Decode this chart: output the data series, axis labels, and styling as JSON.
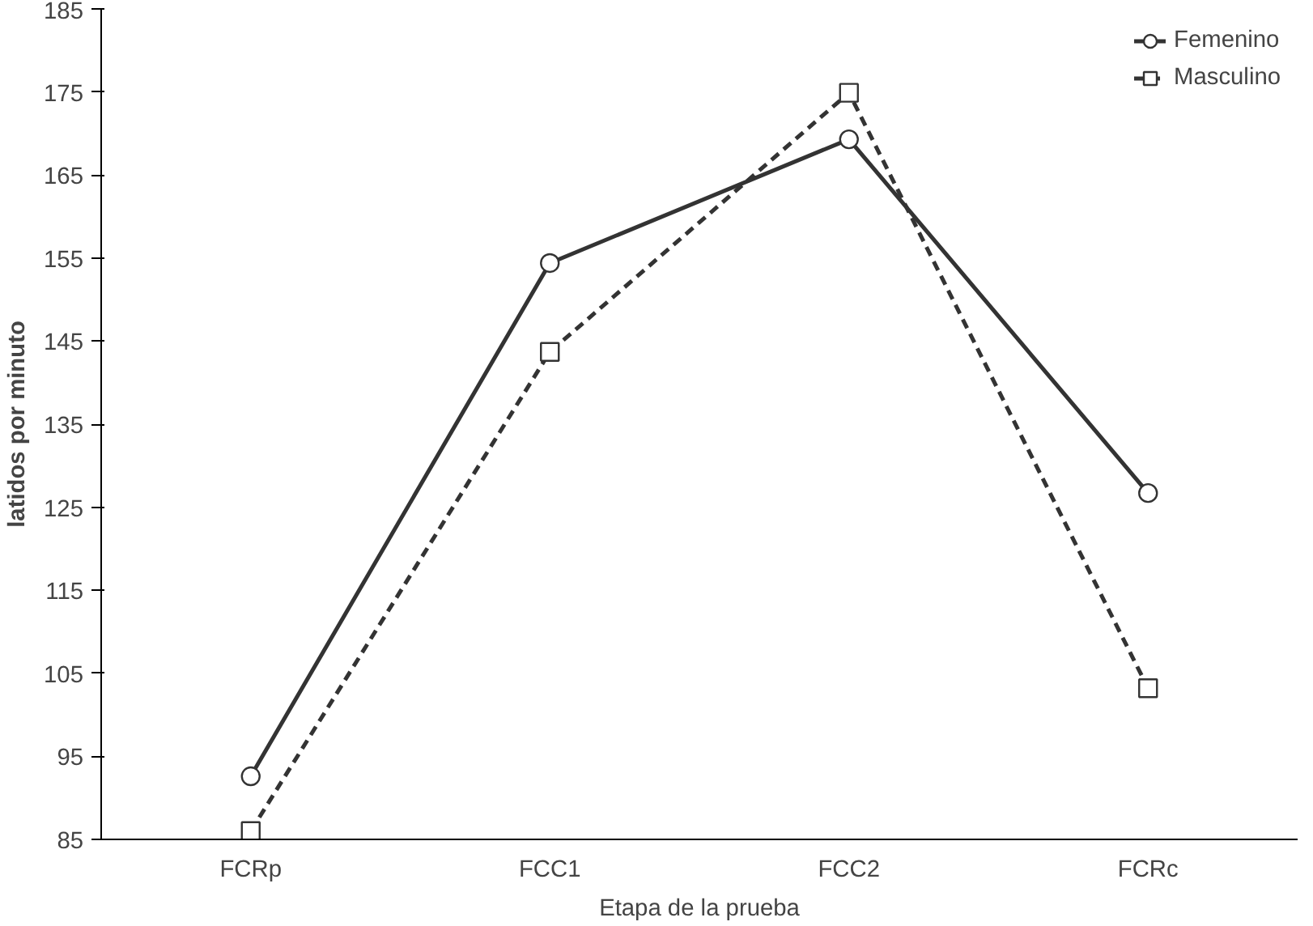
{
  "chart_data": {
    "type": "line",
    "xlabel": "Etapa de la prueba",
    "ylabel": "latidos por minuto",
    "categories": [
      "FCRp",
      "FCC1",
      "FCC2",
      "FCRc"
    ],
    "series": [
      {
        "name": "Femenino",
        "color": "#333333",
        "values": [
          92.6,
          154.4,
          169.3,
          126.7
        ],
        "marker": "circle",
        "line_style": "solid"
      },
      {
        "name": "Masculino",
        "color": "#333333",
        "values": [
          86,
          143.7,
          174.9,
          103.2
        ],
        "marker": "square",
        "line_style": "dashed"
      }
    ],
    "ylim": [
      85,
      185
    ],
    "yticks": [
      85,
      95,
      105,
      115,
      125,
      135,
      145,
      155,
      165,
      175,
      185
    ],
    "grid": false,
    "legend": "top right"
  }
}
